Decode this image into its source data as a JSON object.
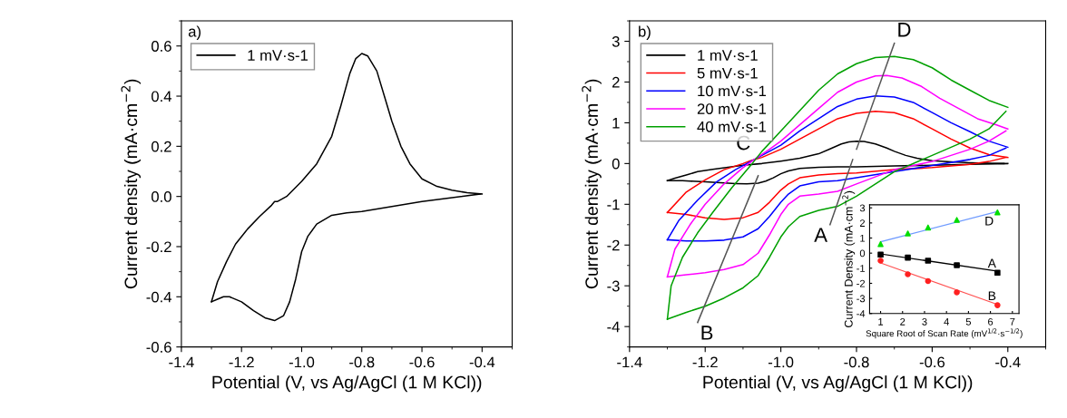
{
  "chart_data": [
    {
      "type": "line",
      "xlabel": "Potential (V, vs Ag/AgCl (1 M KCl))",
      "ylabel": "Current density (mA·cm$^{−2}$)",
      "annotations": [
        "a)"
      ],
      "legend": "top left",
      "grid": false,
      "xlim": [
        -1.4,
        -0.3
      ],
      "xticks": [
        -1.4,
        -1.2,
        {
          "value": -1.0,
          "label": "-1.0"
        },
        -0.8,
        -0.6,
        -0.4
      ],
      "ylim": [
        -0.6,
        0.7
      ],
      "yticks": [
        -0.6,
        -0.4,
        -0.2,
        {
          "value": 0,
          "label": "0.0"
        },
        0.2,
        0.4,
        0.6
      ],
      "series": [
        {
          "name": "1 mV·s-1",
          "color": "#000000",
          "x": [
            -0.405,
            -0.5,
            -0.6,
            -0.7,
            -0.8,
            -0.85,
            -0.9,
            -0.95,
            -0.98,
            -1.0,
            -1.02,
            -1.04,
            -1.06,
            -1.09,
            -1.12,
            -1.16,
            -1.2,
            -1.24,
            -1.26,
            -1.28,
            -1.3
          ],
          "values": [
            0.01,
            -0.005,
            -0.02,
            -0.04,
            -0.06,
            -0.065,
            -0.075,
            -0.11,
            -0.16,
            -0.22,
            -0.33,
            -0.42,
            -0.475,
            -0.495,
            -0.485,
            -0.455,
            -0.42,
            -0.4,
            -0.4,
            -0.41,
            -0.42
          ]
        },
        {
          "color": "#000000",
          "x": [
            -1.3,
            -1.28,
            -1.25,
            -1.22,
            -1.18,
            -1.14,
            -1.1,
            -1.09,
            -1.08,
            -1.05,
            -1.0,
            -0.95,
            -0.9,
            -0.87,
            -0.84,
            -0.82,
            -0.8,
            -0.78,
            -0.75,
            -0.72,
            -0.7,
            -0.67,
            -0.64,
            -0.6,
            -0.55,
            -0.5,
            -0.45,
            -0.4
          ],
          "values": [
            -0.42,
            -0.34,
            -0.26,
            -0.19,
            -0.13,
            -0.08,
            -0.035,
            -0.02,
            -0.02,
            0.0,
            0.06,
            0.13,
            0.24,
            0.36,
            0.49,
            0.55,
            0.57,
            0.56,
            0.5,
            0.38,
            0.3,
            0.2,
            0.13,
            0.07,
            0.04,
            0.025,
            0.015,
            0.01
          ]
        }
      ]
    },
    {
      "type": "line",
      "xlabel": "Potential (V, vs Ag/AgCl (1 M KCl))",
      "ylabel": "Current density (mA·cm$^{−2}$)",
      "legend": "top left",
      "grid": false,
      "annotations": [
        "b)",
        {
          "text": "C",
          "x": -1.07,
          "y": 0.05
        },
        {
          "text": "D",
          "x": -0.7,
          "y": 2.95
        },
        {
          "text": "A",
          "x": -0.87,
          "y": -1.5
        },
        {
          "text": "B",
          "x": -1.22,
          "y": -3.9
        }
      ],
      "xlim": [
        -1.4,
        -0.3
      ],
      "xticks": [
        -1.4,
        -1.2,
        {
          "value": -1.0,
          "label": "-1.0"
        },
        -0.8,
        -0.6,
        -0.4
      ],
      "ylim": [
        -4.5,
        3.5
      ],
      "yticks": [
        -4,
        -3,
        -2,
        -1,
        0,
        1,
        2,
        3
      ],
      "series": [
        {
          "name": "1 mV·s-1",
          "color": "#000000",
          "x": [
            -0.4,
            -0.5,
            -0.6,
            -0.7,
            -0.8,
            -0.85,
            -0.9,
            -0.95,
            -0.98,
            -1.0,
            -1.02,
            -1.04,
            -1.06,
            -1.09,
            -1.12,
            -1.16,
            -1.2,
            -1.24,
            -1.26,
            -1.28,
            -1.3
          ],
          "values": [
            0.0,
            -0.02,
            -0.04,
            -0.06,
            -0.08,
            -0.08,
            -0.09,
            -0.12,
            -0.18,
            -0.25,
            -0.35,
            -0.43,
            -0.48,
            -0.5,
            -0.49,
            -0.47,
            -0.45,
            -0.43,
            -0.42,
            -0.42,
            -0.42
          ]
        },
        {
          "color": "#000000",
          "x": [
            -1.3,
            -1.28,
            -1.25,
            -1.22,
            -1.18,
            -1.14,
            -1.1,
            -1.05,
            -1.0,
            -0.95,
            -0.9,
            -0.87,
            -0.84,
            -0.82,
            -0.8,
            -0.78,
            -0.75,
            -0.72,
            -0.7,
            -0.67,
            -0.64,
            -0.6,
            -0.55,
            -0.5,
            -0.45,
            -0.41
          ],
          "values": [
            -0.42,
            -0.36,
            -0.28,
            -0.2,
            -0.14,
            -0.09,
            -0.04,
            0.0,
            0.06,
            0.13,
            0.24,
            0.36,
            0.48,
            0.53,
            0.55,
            0.54,
            0.48,
            0.38,
            0.3,
            0.2,
            0.13,
            0.07,
            0.04,
            0.02,
            0.01,
            0.0
          ]
        },
        {
          "name": "5 mV·s-1",
          "color": "#ff0000",
          "x": [
            -1.3,
            -1.25,
            -1.2,
            -1.15,
            -1.1,
            -1.08,
            -1.05,
            -1.0,
            -0.95,
            -0.9,
            -0.85,
            -0.8,
            -0.75,
            -0.7,
            -0.65,
            -0.6,
            -0.55,
            -0.5,
            -0.45,
            -0.4
          ],
          "values": [
            -1.2,
            -0.7,
            -0.4,
            -0.15,
            0.0,
            0.07,
            0.15,
            0.35,
            0.6,
            0.85,
            1.1,
            1.23,
            1.28,
            1.25,
            1.1,
            0.85,
            0.6,
            0.38,
            0.22,
            0.15
          ]
        },
        {
          "color": "#ff0000",
          "x": [
            -0.405,
            -0.45,
            -0.5,
            -0.6,
            -0.7,
            -0.8,
            -0.85,
            -0.9,
            -0.95,
            -0.98,
            -1.0,
            -1.03,
            -1.06,
            -1.1,
            -1.15,
            -1.2,
            -1.25,
            -1.3
          ],
          "values": [
            0.15,
            0.05,
            -0.02,
            -0.1,
            -0.15,
            -0.23,
            -0.25,
            -0.28,
            -0.35,
            -0.5,
            -0.65,
            -0.95,
            -1.2,
            -1.33,
            -1.37,
            -1.33,
            -1.25,
            -1.2
          ]
        },
        {
          "name": "10 mV·s-1",
          "color": "#0000ff",
          "x": [
            -1.3,
            -1.27,
            -1.22,
            -1.17,
            -1.12,
            -1.08,
            -1.05,
            -1.0,
            -0.95,
            -0.9,
            -0.85,
            -0.8,
            -0.75,
            -0.7,
            -0.65,
            -0.6,
            -0.55,
            -0.5,
            -0.45,
            -0.4
          ],
          "values": [
            -1.87,
            -1.4,
            -0.9,
            -0.45,
            -0.15,
            0.05,
            0.2,
            0.45,
            0.8,
            1.1,
            1.4,
            1.58,
            1.66,
            1.63,
            1.5,
            1.25,
            1.0,
            0.78,
            0.55,
            0.4
          ]
        },
        {
          "color": "#0000ff",
          "x": [
            -0.405,
            -0.45,
            -0.5,
            -0.6,
            -0.7,
            -0.8,
            -0.85,
            -0.9,
            -0.95,
            -0.98,
            -1.0,
            -1.03,
            -1.06,
            -1.1,
            -1.15,
            -1.2,
            -1.25,
            -1.3
          ],
          "values": [
            0.38,
            0.2,
            0.1,
            -0.05,
            -0.2,
            -0.35,
            -0.42,
            -0.45,
            -0.55,
            -0.75,
            -0.95,
            -1.3,
            -1.6,
            -1.8,
            -1.88,
            -1.9,
            -1.9,
            -1.87
          ]
        },
        {
          "name": "20 mV·s-1",
          "color": "#ff00ff",
          "x": [
            -1.3,
            -1.28,
            -1.24,
            -1.2,
            -1.15,
            -1.1,
            -1.07,
            -1.03,
            -1.0,
            -0.95,
            -0.9,
            -0.85,
            -0.8,
            -0.75,
            -0.72,
            -0.68,
            -0.63,
            -0.58,
            -0.53,
            -0.48,
            -0.43,
            -0.4
          ],
          "values": [
            -2.78,
            -2.1,
            -1.5,
            -1.0,
            -0.5,
            -0.1,
            0.1,
            0.35,
            0.55,
            0.95,
            1.35,
            1.75,
            2.0,
            2.15,
            2.16,
            2.1,
            1.9,
            1.6,
            1.35,
            1.1,
            0.95,
            0.85
          ]
        },
        {
          "color": "#ff00ff",
          "x": [
            -0.405,
            -0.45,
            -0.5,
            -0.6,
            -0.7,
            -0.8,
            -0.85,
            -0.9,
            -0.95,
            -0.98,
            -1.0,
            -1.03,
            -1.06,
            -1.1,
            -1.15,
            -1.2,
            -1.25,
            -1.3
          ],
          "values": [
            0.8,
            0.55,
            0.35,
            0.05,
            -0.15,
            -0.5,
            -0.68,
            -0.75,
            -0.8,
            -1.0,
            -1.25,
            -1.75,
            -2.2,
            -2.48,
            -2.6,
            -2.68,
            -2.73,
            -2.78
          ]
        },
        {
          "name": "40 mV·s-1",
          "color": "#00a000",
          "x": [
            -1.3,
            -1.29,
            -1.26,
            -1.22,
            -1.18,
            -1.13,
            -1.08,
            -1.05,
            -1.0,
            -0.95,
            -0.9,
            -0.85,
            -0.8,
            -0.75,
            -0.7,
            -0.65,
            -0.6,
            -0.55,
            -0.5,
            -0.45,
            -0.4
          ],
          "values": [
            -3.82,
            -3.0,
            -2.3,
            -1.7,
            -1.2,
            -0.6,
            -0.05,
            0.3,
            0.8,
            1.3,
            1.8,
            2.2,
            2.45,
            2.6,
            2.63,
            2.55,
            2.35,
            2.05,
            1.8,
            1.55,
            1.38
          ]
        },
        {
          "color": "#00a000",
          "x": [
            -0.405,
            -0.45,
            -0.5,
            -0.6,
            -0.7,
            -0.8,
            -0.85,
            -0.9,
            -0.95,
            -0.98,
            -1.0,
            -1.03,
            -1.06,
            -1.1,
            -1.15,
            -1.2,
            -1.25,
            -1.3
          ],
          "values": [
            1.28,
            0.85,
            0.6,
            0.2,
            -0.2,
            -0.8,
            -1.05,
            -1.15,
            -1.3,
            -1.55,
            -1.8,
            -2.3,
            -2.75,
            -3.05,
            -3.3,
            -3.5,
            -3.65,
            -3.82
          ]
        },
        {
          "color": "#555555",
          "x": [
            -0.8,
            -0.7
          ],
          "values": [
            0.35,
            2.95
          ]
        },
        {
          "color": "#555555",
          "x": [
            -0.81,
            -0.87
          ],
          "values": [
            0.1,
            -1.5
          ]
        },
        {
          "color": "#555555",
          "x": [
            -1.06,
            -1.22
          ],
          "values": [
            -0.3,
            -3.9
          ]
        }
      ]
    },
    {
      "type": "scatter",
      "xlabel": "Square Root of Scan Rate (mV$^{1/2}$·s$^{−1/2}$)",
      "ylabel": "Current Density (mA·cm$^{−2}$)",
      "grid": false,
      "annotations": [
        {
          "text": "D",
          "x": 6.32,
          "y": 2.7
        },
        {
          "text": "A",
          "x": 6.32,
          "y": -1.3
        },
        {
          "text": "B",
          "x": 6.32,
          "y": -3.45
        }
      ],
      "xlim": [
        0.5,
        7.3
      ],
      "xticks": [
        1,
        2,
        3,
        4,
        5,
        6,
        7
      ],
      "ylim": [
        -4,
        3.2
      ],
      "yticks": [
        -4,
        -3,
        -2,
        -1,
        0,
        1,
        2,
        3
      ],
      "series": [
        {
          "type": "line",
          "color": "#6f9bff",
          "x": [
            1,
            6.32
          ],
          "values": [
            0.75,
            2.75
          ]
        },
        {
          "type": "line",
          "color": "#000000",
          "x": [
            1,
            6.32
          ],
          "values": [
            -0.05,
            -1.2
          ]
        },
        {
          "type": "line",
          "color": "#ff5050",
          "x": [
            1,
            6.32
          ],
          "values": [
            -0.65,
            -3.4
          ]
        },
        {
          "color": "#00dd00",
          "marker": "triangle",
          "x": [
            1,
            2.24,
            3.16,
            4.47,
            6.32
          ],
          "values": [
            0.6,
            1.3,
            1.7,
            2.2,
            2.7
          ]
        },
        {
          "color": "#000000",
          "marker": "square",
          "x": [
            1,
            2.24,
            3.16,
            4.47,
            6.32
          ],
          "values": [
            -0.1,
            -0.3,
            -0.5,
            -0.8,
            -1.3
          ]
        },
        {
          "color": "#ff2020",
          "marker": "circle",
          "x": [
            1,
            2.24,
            3.16,
            4.47,
            6.32
          ],
          "values": [
            -0.5,
            -1.4,
            -1.85,
            -2.6,
            -3.45
          ]
        }
      ]
    }
  ]
}
